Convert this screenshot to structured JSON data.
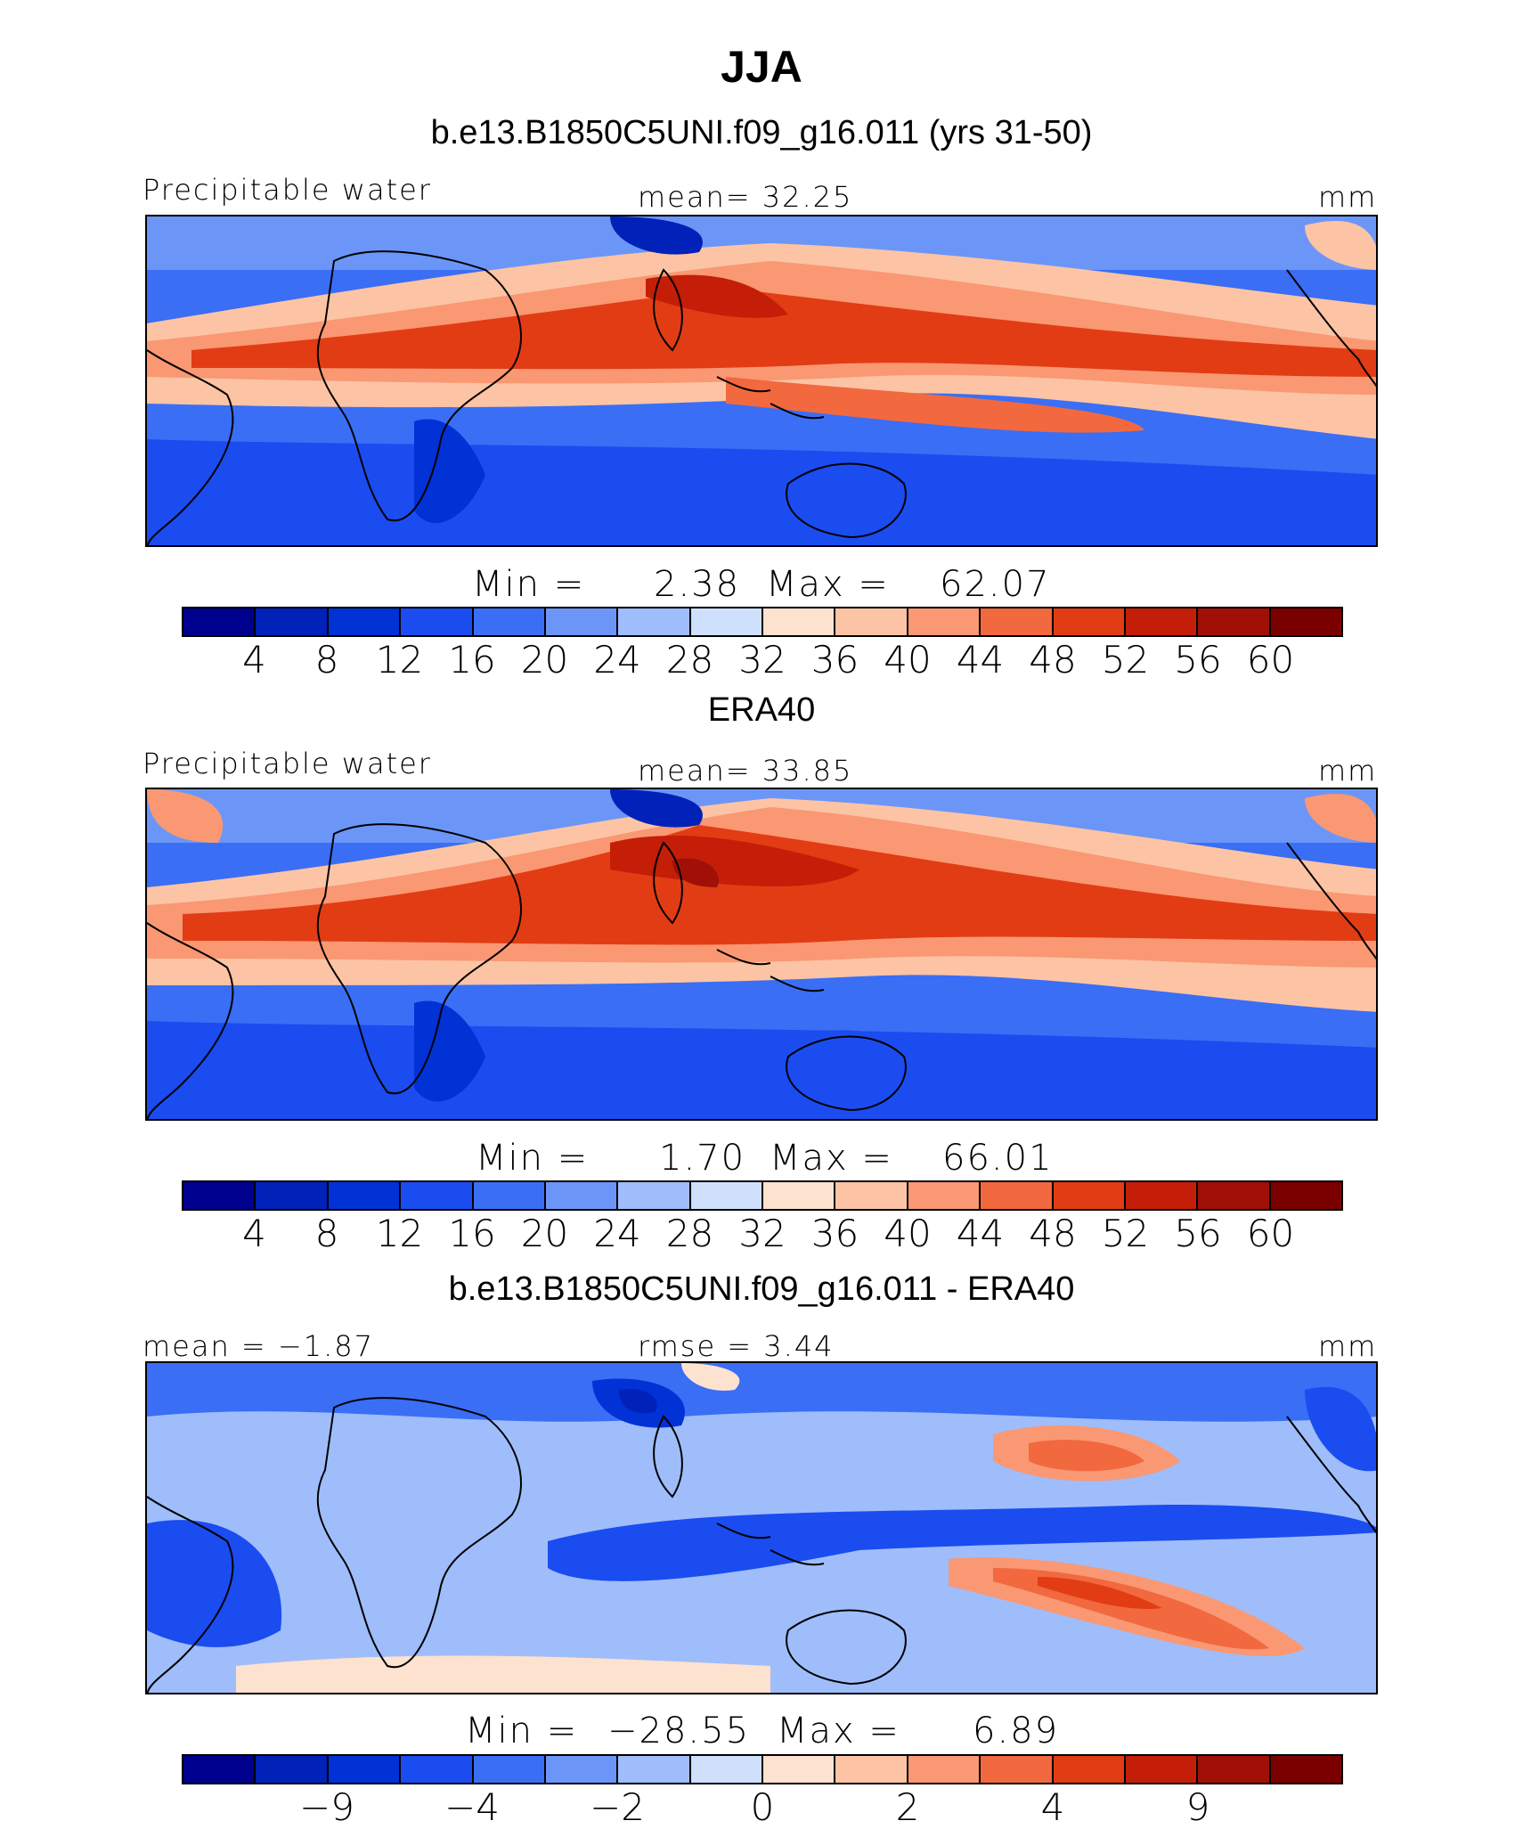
{
  "figure": {
    "title": "JJA",
    "panel_titles": [
      "b.e13.B1850C5UNI.f09_g16.011 (yrs 31-50)",
      "ERA40",
      "b.e13.B1850C5UNI.f09_g16.011 - ERA40"
    ]
  },
  "panels": [
    {
      "left_label": "Precipitable water",
      "center_label": "mean=   32.25",
      "right_label": "mm",
      "min_label": "Min  =",
      "min_value": "2.38",
      "max_label": "Max  =",
      "max_value": "62.07",
      "ticks": [
        "4",
        "8",
        "12",
        "16",
        "20",
        "24",
        "28",
        "32",
        "36",
        "40",
        "44",
        "48",
        "52",
        "56",
        "60"
      ]
    },
    {
      "left_label": "Precipitable water",
      "center_label": "mean=   33.85",
      "right_label": "mm",
      "min_label": "Min  =",
      "min_value": "1.70",
      "max_label": "Max  =",
      "max_value": "66.01",
      "ticks": [
        "4",
        "8",
        "12",
        "16",
        "20",
        "24",
        "28",
        "32",
        "36",
        "40",
        "44",
        "48",
        "52",
        "56",
        "60"
      ]
    },
    {
      "left_label": "mean =   −1.87",
      "center_label": "rmse =    3.44",
      "right_label": "mm",
      "min_label": "Min  =",
      "min_value": "−28.55",
      "max_label": "Max  =",
      "max_value": "6.89",
      "ticks": [
        "−9",
        "−4",
        "−2",
        "0",
        "2",
        "4",
        "9"
      ]
    }
  ],
  "colorbar_colors": [
    "#00008f",
    "#0022b8",
    "#0032d6",
    "#1a4cf0",
    "#3a6ef5",
    "#6b96f8",
    "#9fbdfb",
    "#cfe0fd",
    "#fde2cf",
    "#fcc4a4",
    "#f99873",
    "#f2683f",
    "#e23c14",
    "#c41e08",
    "#a01006",
    "#7a0000"
  ]
}
